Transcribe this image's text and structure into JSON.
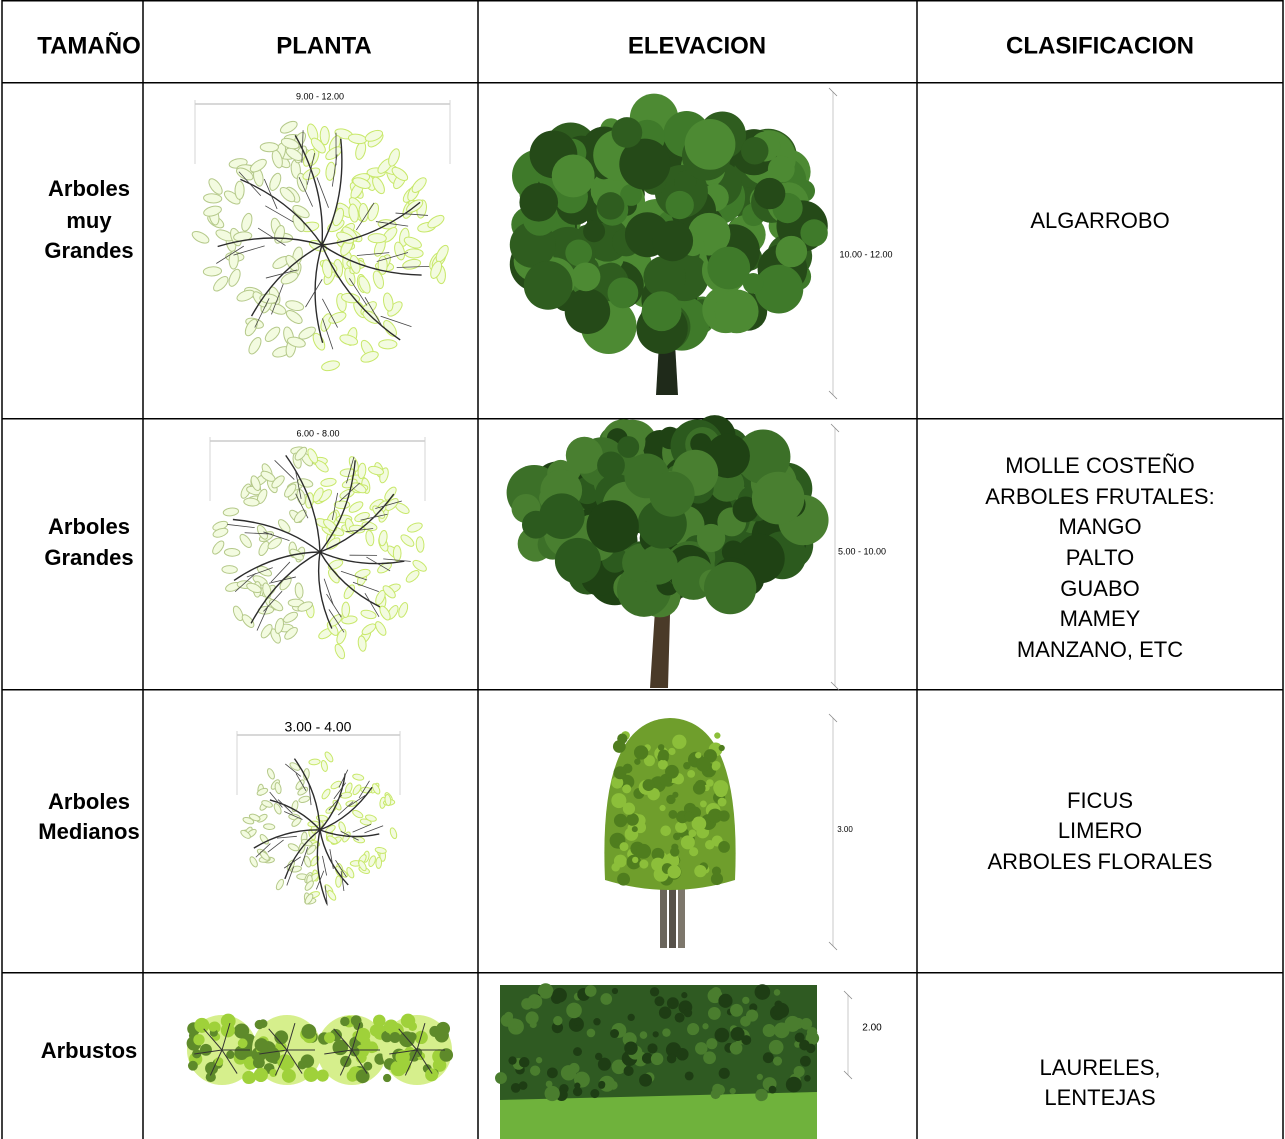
{
  "table": {
    "header": [
      "TAMAÑO",
      "PLANTA",
      "ELEVACION",
      "CLASIFICACION"
    ],
    "rows": [
      {
        "size": [
          "Arboles",
          "muy",
          "Grandes"
        ],
        "plan_dimension": "9.00 - 12.00",
        "elevation_dimension": "10.00 - 12.00",
        "classification": [
          "ALGARROBO"
        ]
      },
      {
        "size": [
          "Arboles",
          "Grandes"
        ],
        "plan_dimension": "6.00 - 8.00",
        "elevation_dimension": "5.00 - 10.00",
        "classification": [
          "MOLLE COSTEÑO",
          "ARBOLES FRUTALES:",
          "MANGO",
          "PALTO",
          "GUABO",
          "MAMEY",
          "MANZANO, ETC"
        ]
      },
      {
        "size": [
          "Arboles",
          "Medianos"
        ],
        "plan_dimension": "3.00 - 4.00",
        "elevation_dimension": "3.00",
        "classification": [
          "FICUS",
          "LIMERO",
          "ARBOLES FLORALES"
        ]
      },
      {
        "size": [
          "Arbustos"
        ],
        "elevation_dimension": "2.00",
        "classification": [
          "LAURELES,",
          "LENTEJAS"
        ]
      }
    ]
  }
}
